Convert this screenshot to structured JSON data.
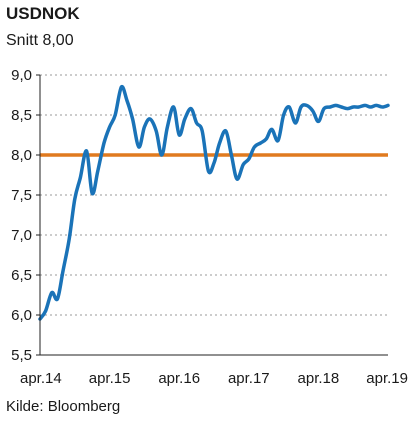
{
  "chart_data": {
    "type": "line",
    "title": "USDNOK",
    "subtitle": "Snitt 8,00",
    "source": "Kilde: Bloomberg",
    "xlabel": "",
    "ylabel": "",
    "ylim": [
      5.5,
      9.0
    ],
    "xlim": [
      2014.25,
      2019.25
    ],
    "yticks": [
      5.5,
      6.0,
      6.5,
      7.0,
      7.5,
      8.0,
      8.5,
      9.0
    ],
    "ytick_labels": [
      "5,5",
      "6,0",
      "6,5",
      "7,0",
      "7,5",
      "8,0",
      "8,5",
      "9,0"
    ],
    "xticks": [
      2014.25,
      2015.25,
      2016.25,
      2017.25,
      2018.25,
      2019.25
    ],
    "xtick_labels": [
      "apr.14",
      "apr.15",
      "apr.16",
      "apr.17",
      "apr.18",
      "apr.19"
    ],
    "grid": "horizontal-dashed",
    "average_line": {
      "value": 8.0,
      "color": "#e07a1f"
    },
    "series": [
      {
        "color": "#1a73b8",
        "x": [
          2014.25,
          2014.33,
          2014.42,
          2014.5,
          2014.58,
          2014.67,
          2014.75,
          2014.83,
          2014.92,
          2015.0,
          2015.08,
          2015.17,
          2015.25,
          2015.33,
          2015.42,
          2015.5,
          2015.58,
          2015.67,
          2015.75,
          2015.83,
          2015.92,
          2016.0,
          2016.08,
          2016.17,
          2016.25,
          2016.33,
          2016.42,
          2016.5,
          2016.58,
          2016.67,
          2016.75,
          2016.83,
          2016.92,
          2017.0,
          2017.08,
          2017.17,
          2017.25,
          2017.33,
          2017.42,
          2017.5,
          2017.58,
          2017.67,
          2017.75,
          2017.83,
          2017.92,
          2018.0,
          2018.08,
          2018.17,
          2018.25,
          2018.33,
          2018.42,
          2018.5,
          2018.58,
          2018.67,
          2018.75,
          2018.83,
          2018.92,
          2019.0,
          2019.08,
          2019.17,
          2019.25
        ],
        "y": [
          5.95,
          6.05,
          6.28,
          6.2,
          6.55,
          6.95,
          7.45,
          7.72,
          8.05,
          7.52,
          7.8,
          8.15,
          8.35,
          8.5,
          8.85,
          8.68,
          8.45,
          8.1,
          8.35,
          8.45,
          8.3,
          8.0,
          8.35,
          8.6,
          8.25,
          8.45,
          8.58,
          8.4,
          8.3,
          7.8,
          7.9,
          8.15,
          8.3,
          8.0,
          7.7,
          7.88,
          7.95,
          8.1,
          8.15,
          8.2,
          8.32,
          8.18,
          8.5,
          8.6,
          8.4,
          8.6,
          8.62,
          8.55,
          8.42,
          8.58,
          8.6,
          8.62,
          8.6,
          8.58,
          8.6,
          8.6,
          8.62,
          8.6,
          8.62,
          8.6,
          8.62
        ]
      }
    ]
  }
}
